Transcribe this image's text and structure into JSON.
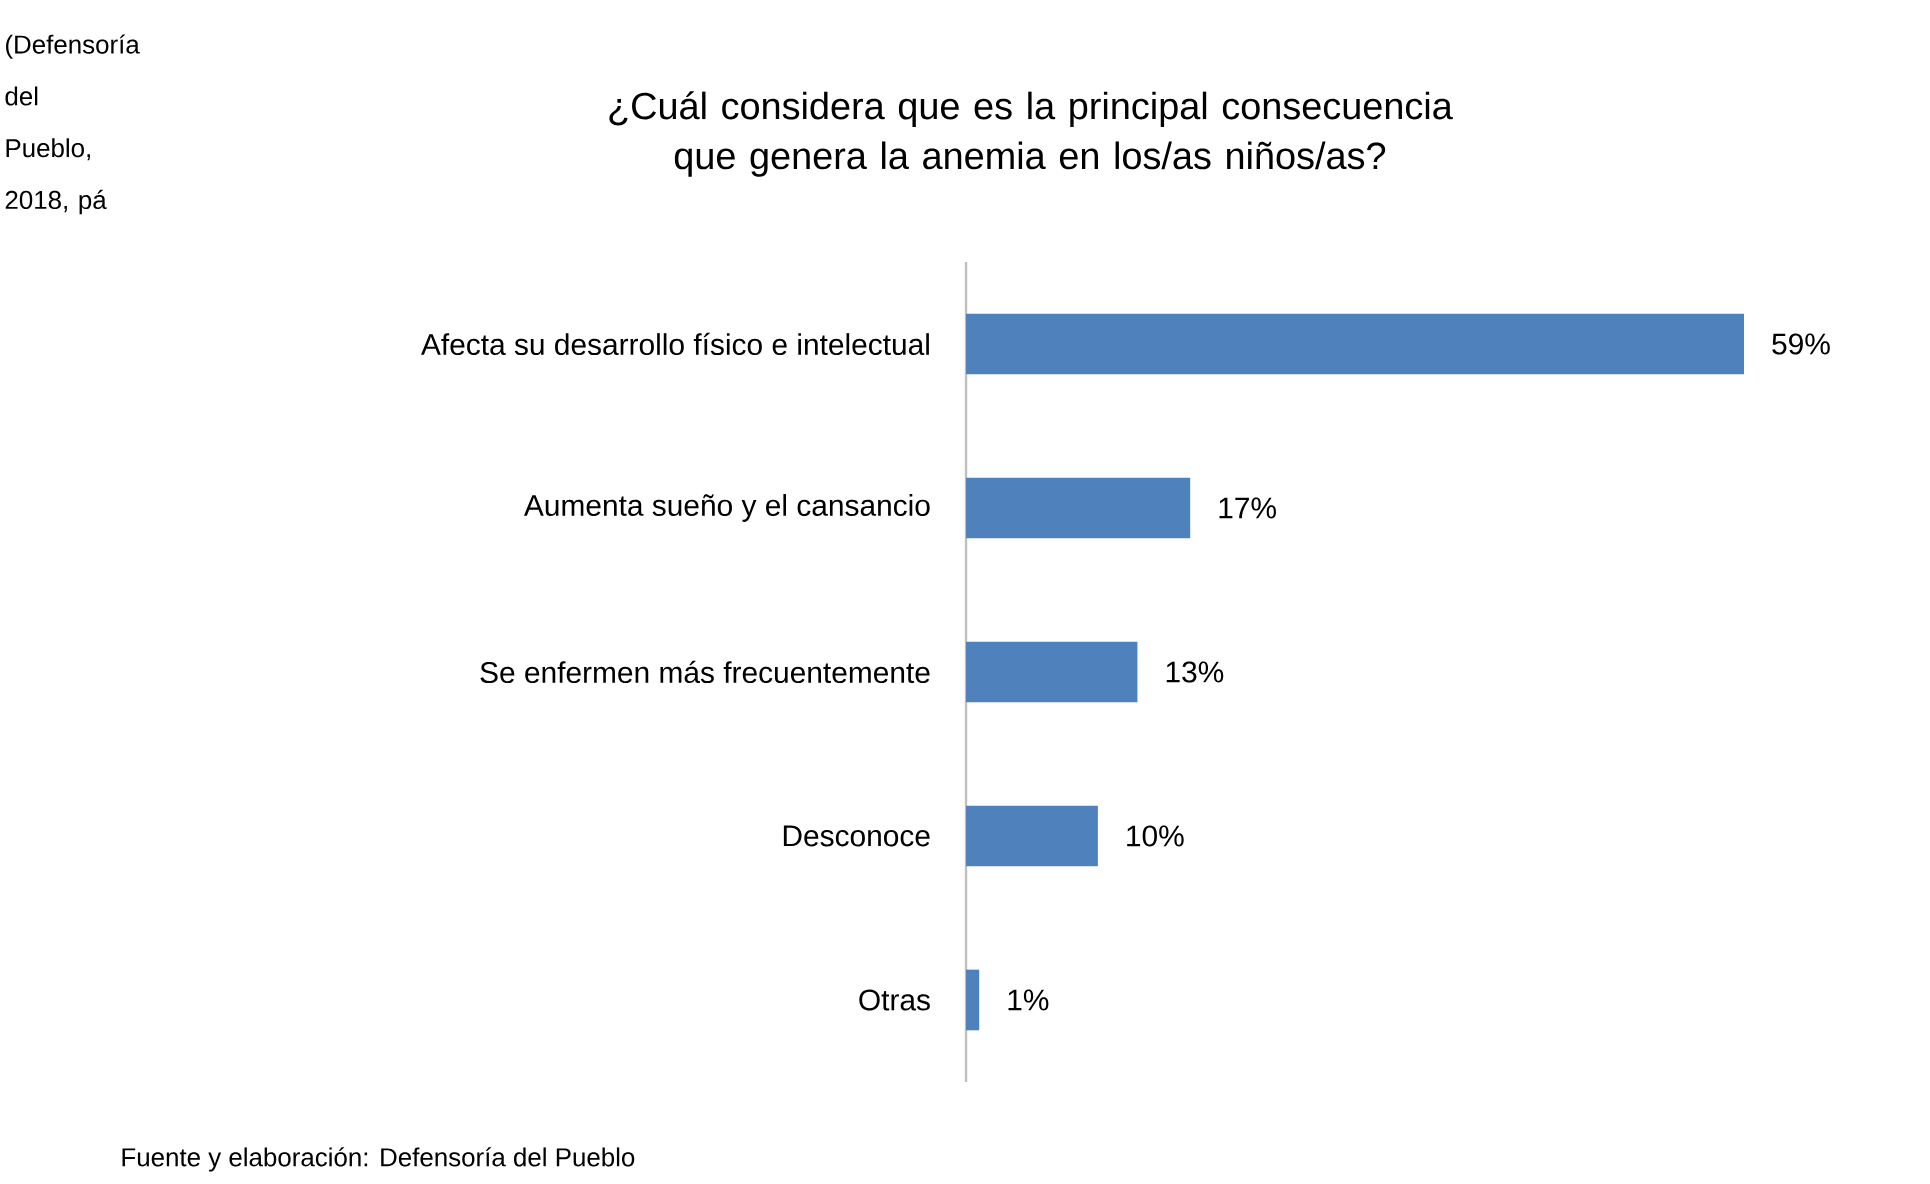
{
  "chart_data": {
    "type": "bar",
    "orientation": "horizontal",
    "title": "¿Cuál considera que es la principal consecuencia que genera la anemia en los/as niños/as?",
    "categories": [
      "Afecta su desarrollo físico e intelectual",
      "Aumenta sueño y el cansancio",
      "Se enfermen más frecuentemente",
      "Desconoce",
      "Otras"
    ],
    "values": [
      59,
      17,
      13,
      10,
      1
    ],
    "value_labels": [
      "59%",
      "17%",
      "13%",
      "10%",
      "1%"
    ],
    "color": "#4f81bd",
    "annotations": [
      "Fuente y elaboración: Defensoría del Pueblo",
      "(Defensoría del Pueblo, 2018, pá"
    ]
  }
}
